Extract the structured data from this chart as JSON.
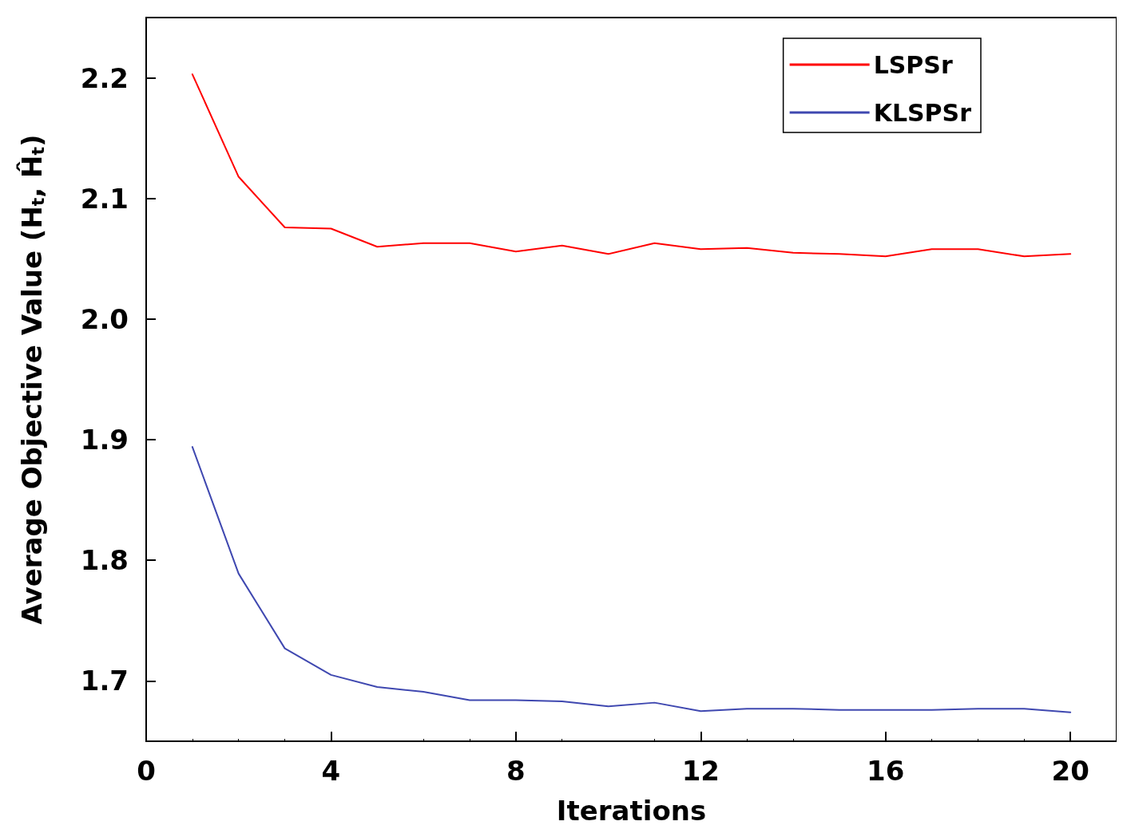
{
  "chart_data": {
    "type": "line",
    "xlabel": "Iterations",
    "ylabel": "Average Objective Value (H$_{t}$, Ĥ$_{t}$)",
    "x": [
      1,
      2,
      3,
      4,
      5,
      6,
      7,
      8,
      9,
      10,
      11,
      12,
      13,
      14,
      15,
      16,
      17,
      18,
      19,
      20
    ],
    "series": [
      {
        "name": "LSPSr",
        "color": "#ff0000",
        "values": [
          2.203,
          2.118,
          2.076,
          2.075,
          2.06,
          2.063,
          2.063,
          2.056,
          2.061,
          2.054,
          2.063,
          2.058,
          2.059,
          2.055,
          2.054,
          2.052,
          2.058,
          2.058,
          2.052,
          2.054
        ]
      },
      {
        "name": "KLSPSr",
        "color": "#3f48b0",
        "values": [
          1.894,
          1.789,
          1.727,
          1.705,
          1.695,
          1.691,
          1.684,
          1.684,
          1.683,
          1.679,
          1.682,
          1.675,
          1.677,
          1.677,
          1.676,
          1.676,
          1.676,
          1.677,
          1.677,
          1.674
        ]
      }
    ],
    "xlim": [
      0,
      21
    ],
    "xticks": [
      0,
      4,
      8,
      12,
      16,
      20
    ],
    "ylim": [
      1.65,
      2.25
    ],
    "yticks": [
      1.7,
      1.8,
      1.9,
      {
        "value": 2,
        "label": "2.0"
      },
      2.1,
      2.2
    ],
    "grid": false,
    "legend": "top right",
    "marker": "none",
    "line_style": "solid"
  }
}
